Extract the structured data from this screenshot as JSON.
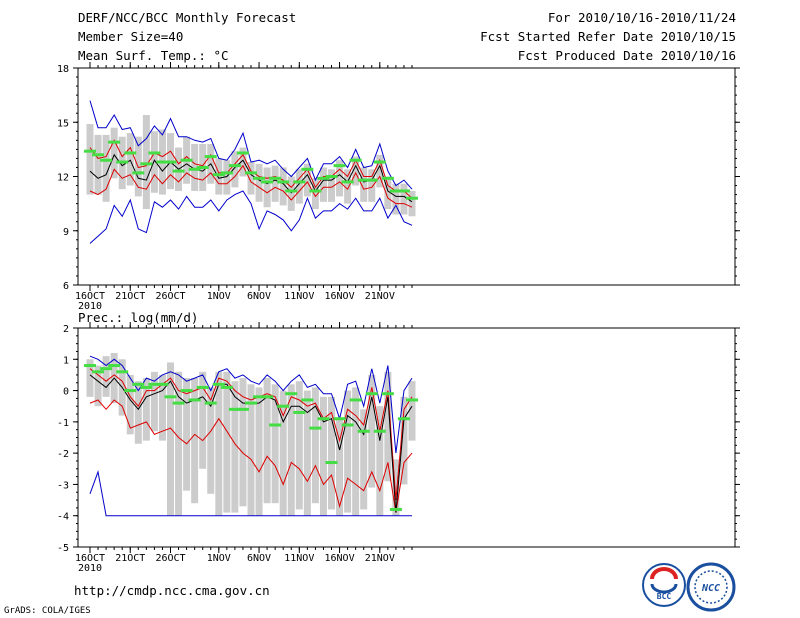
{
  "header": {
    "title": "DERF/NCC/BCC Monthly Forecast",
    "member_size": "Member Size=40",
    "variable": "Mean Surf. Temp.: °C",
    "period": "For 2010/10/16-2010/11/24",
    "start_date": "Fcst Started Refer Date 2010/10/15",
    "produced_date": "Fcst Produced Date 2010/10/16"
  },
  "footer": {
    "url": "http://cmdp.ncc.cma.gov.cn",
    "credit": "GrADS: COLA/IGES",
    "logo_bcc": "BCC",
    "logo_ncc": "NCC"
  },
  "colors": {
    "max": "#0000cc",
    "min": "#0000cc",
    "spread": "#dd0000",
    "mean": "#000000",
    "box": "#cccccc",
    "obs": "#44dd44"
  },
  "chart_data": [
    {
      "type": "line",
      "title": "Mean Surf. Temp.: °C",
      "xlabel": "",
      "ylabel": "°C",
      "ylim": [
        6,
        18
      ],
      "yticks": [
        "6",
        "9",
        "12",
        "15",
        "18"
      ],
      "xtick_labels": [
        {
          "day": 1,
          "label": "16OCT",
          "sub": "2010"
        },
        {
          "day": 6,
          "label": "21OCT"
        },
        {
          "day": 11,
          "label": "26OCT"
        },
        {
          "day": 17,
          "label": "1NOV"
        },
        {
          "day": 22,
          "label": "6NOV"
        },
        {
          "day": 27,
          "label": "11NOV"
        },
        {
          "day": 32,
          "label": "16NOV"
        },
        {
          "day": 37,
          "label": "21NOV"
        }
      ],
      "series": [
        {
          "name": "max",
          "values": [
            16.2,
            14.7,
            14.7,
            15.4,
            14.6,
            14.7,
            13.7,
            14.1,
            14.8,
            14.3,
            15.2,
            14.2,
            14.2,
            14.0,
            13.9,
            14.1,
            13.0,
            12.9,
            13.5,
            14.4,
            12.8,
            12.9,
            12.7,
            12.9,
            12.4,
            12.0,
            12.5,
            13.0,
            11.8,
            12.7,
            12.7,
            13.1,
            12.5,
            13.5,
            12.5,
            12.6,
            13.8,
            12.3,
            11.5,
            11.8,
            11.3
          ]
        },
        {
          "name": "upper",
          "values": [
            13.6,
            13.0,
            13.1,
            14.0,
            13.1,
            13.6,
            12.5,
            12.6,
            13.3,
            13.1,
            13.4,
            12.7,
            13.1,
            12.7,
            12.6,
            13.2,
            12.2,
            12.2,
            12.7,
            13.2,
            12.3,
            12.0,
            11.9,
            12.0,
            11.8,
            11.4,
            11.9,
            12.4,
            11.4,
            12.0,
            12.0,
            12.4,
            12.0,
            12.9,
            12.0,
            12.0,
            12.9,
            11.5,
            11.2,
            11.2,
            10.8
          ]
        },
        {
          "name": "mean",
          "values": [
            12.3,
            11.9,
            12.1,
            13.2,
            12.6,
            12.9,
            11.9,
            11.8,
            12.9,
            12.3,
            12.8,
            12.4,
            12.7,
            12.4,
            12.3,
            12.7,
            11.9,
            12.0,
            12.5,
            12.9,
            12.1,
            11.8,
            11.6,
            11.8,
            11.6,
            11.1,
            11.6,
            12.1,
            11.2,
            11.8,
            11.8,
            12.1,
            11.7,
            12.6,
            11.7,
            11.8,
            12.6,
            11.2,
            10.9,
            10.9,
            10.6
          ]
        },
        {
          "name": "lower",
          "values": [
            11.2,
            11.0,
            11.3,
            12.4,
            11.9,
            12.1,
            11.4,
            11.3,
            12.1,
            11.6,
            12.1,
            11.7,
            12.2,
            11.9,
            11.8,
            12.2,
            11.6,
            11.6,
            12.0,
            12.6,
            11.7,
            11.4,
            11.1,
            11.4,
            11.2,
            10.7,
            11.2,
            11.7,
            10.9,
            11.4,
            11.4,
            11.7,
            11.3,
            12.2,
            11.3,
            11.4,
            12.0,
            10.8,
            10.5,
            10.5,
            10.3
          ]
        },
        {
          "name": "min",
          "values": [
            8.3,
            8.7,
            9.1,
            10.4,
            9.8,
            10.7,
            9.1,
            8.9,
            10.6,
            10.3,
            10.7,
            10.2,
            10.9,
            10.3,
            10.3,
            10.7,
            10.1,
            10.7,
            11.0,
            11.2,
            10.5,
            9.1,
            10.1,
            9.9,
            9.6,
            9.0,
            9.6,
            10.8,
            9.7,
            10.1,
            10.1,
            10.5,
            10.2,
            10.8,
            10.1,
            10.1,
            10.8,
            9.7,
            10.4,
            9.5,
            9.3
          ]
        },
        {
          "name": "box_high",
          "values": [
            14.9,
            14.3,
            14.3,
            14.7,
            14.2,
            14.4,
            14.2,
            15.4,
            14.5,
            14.6,
            14.4,
            13.6,
            14.2,
            13.8,
            13.8,
            13.8,
            13.0,
            12.9,
            13.4,
            13.6,
            12.8,
            12.7,
            12.5,
            12.6,
            12.5,
            12.0,
            12.4,
            12.7,
            11.9,
            12.5,
            12.4,
            12.9,
            12.4,
            13.1,
            12.5,
            12.4,
            13.2,
            12.0,
            11.6,
            11.6,
            11.2
          ]
        },
        {
          "name": "box_low",
          "values": [
            11.0,
            11.0,
            10.6,
            11.9,
            11.3,
            11.5,
            10.9,
            10.2,
            11.1,
            11.0,
            11.3,
            11.2,
            11.6,
            11.2,
            11.2,
            11.6,
            11.0,
            11.0,
            11.4,
            12.0,
            11.0,
            10.6,
            10.3,
            10.6,
            10.4,
            10.1,
            10.5,
            10.9,
            10.2,
            10.6,
            10.6,
            10.9,
            10.5,
            11.5,
            10.6,
            10.6,
            11.4,
            10.2,
            9.9,
            9.9,
            9.8
          ]
        },
        {
          "name": "observed",
          "values": [
            13.4,
            13.2,
            12.9,
            13.9,
            12.8,
            13.3,
            12.2,
            12.7,
            13.3,
            12.8,
            12.8,
            12.3,
            12.9,
            12.4,
            12.5,
            13.1,
            12.1,
            12.2,
            12.6,
            13.3,
            12.2,
            11.9,
            11.7,
            11.9,
            11.7,
            11.2,
            11.7,
            12.4,
            11.2,
            11.9,
            12.0,
            12.6,
            11.7,
            12.9,
            11.8,
            11.8,
            12.8,
            11.9,
            11.2,
            11.2,
            10.8
          ]
        }
      ]
    },
    {
      "type": "line",
      "title": "Prec.: log(mm/d)",
      "xlabel": "",
      "ylabel": "log(mm/d)",
      "ylim": [
        -5,
        2
      ],
      "yticks": [
        "-5",
        "-4",
        "-3",
        "-2",
        "-1",
        "0",
        "1",
        "2"
      ],
      "xtick_labels": [
        {
          "day": 1,
          "label": "16OCT",
          "sub": "2010"
        },
        {
          "day": 6,
          "label": "21OCT"
        },
        {
          "day": 11,
          "label": "26OCT"
        },
        {
          "day": 17,
          "label": "1NOV"
        },
        {
          "day": 22,
          "label": "6NOV"
        },
        {
          "day": 27,
          "label": "11NOV"
        },
        {
          "day": 32,
          "label": "16NOV"
        },
        {
          "day": 37,
          "label": "21NOV"
        }
      ],
      "series": [
        {
          "name": "max",
          "values": [
            1.1,
            1.0,
            0.8,
            1.0,
            0.8,
            0.4,
            0.0,
            0.4,
            0.3,
            0.5,
            0.6,
            0.5,
            0.3,
            0.4,
            0.5,
            0.0,
            0.6,
            0.7,
            0.4,
            0.5,
            0.3,
            0.2,
            0.5,
            0.3,
            0.0,
            0.3,
            0.5,
            0.1,
            0.2,
            -0.1,
            -0.1,
            -0.9,
            0.2,
            0.3,
            -0.5,
            0.7,
            -0.4,
            0.8,
            -2.0,
            0.0,
            0.4
          ]
        },
        {
          "name": "upper",
          "values": [
            0.7,
            0.5,
            0.3,
            0.5,
            0.3,
            -0.2,
            -0.5,
            0.0,
            0.0,
            0.2,
            0.4,
            0.0,
            -0.1,
            0.0,
            0.1,
            -0.3,
            0.4,
            0.3,
            0.0,
            -0.2,
            -0.3,
            -0.2,
            -0.1,
            -0.2,
            -0.8,
            -0.2,
            -0.3,
            -0.5,
            -0.4,
            -0.9,
            -0.7,
            -1.6,
            -0.6,
            -0.8,
            -1.1,
            0.1,
            -1.3,
            0.0,
            -3.5,
            -0.6,
            -0.2
          ]
        },
        {
          "name": "mean",
          "values": [
            0.5,
            0.3,
            0.1,
            0.4,
            0.1,
            -0.3,
            -0.6,
            -0.2,
            -0.1,
            0.0,
            0.3,
            -0.2,
            -0.4,
            -0.3,
            -0.2,
            -0.5,
            0.2,
            0.2,
            -0.2,
            -0.4,
            -0.4,
            -0.4,
            -0.2,
            -0.3,
            -1.0,
            -0.5,
            -0.5,
            -0.7,
            -0.5,
            -1.0,
            -0.9,
            -1.9,
            -0.8,
            -1.0,
            -1.4,
            -0.2,
            -1.6,
            -0.2,
            -3.9,
            -0.9,
            -0.5
          ]
        },
        {
          "name": "lower",
          "values": [
            -0.4,
            -0.3,
            -0.6,
            -0.3,
            -0.5,
            -1.2,
            -1.1,
            -1.0,
            -1.4,
            -1.3,
            -1.2,
            -1.5,
            -1.7,
            -1.4,
            -1.6,
            -1.3,
            -0.9,
            -1.3,
            -1.7,
            -2.0,
            -2.2,
            -2.6,
            -2.1,
            -2.4,
            -3.0,
            -2.3,
            -2.5,
            -2.9,
            -2.4,
            -3.0,
            -2.7,
            -3.7,
            -2.8,
            -3.0,
            -3.2,
            -2.6,
            -3.2,
            -2.3,
            -3.9,
            -2.3,
            -2.0
          ]
        },
        {
          "name": "min",
          "values": [
            -3.3,
            -2.6,
            -4.0,
            -4.0,
            -4.0,
            -4.0,
            -4.0,
            -4.0,
            -4.0,
            -4.0,
            -4.0,
            -4.0,
            -4.0,
            -4.0,
            -4.0,
            -4.0,
            -4.0,
            -4.0,
            -4.0,
            -4.0,
            -4.0,
            -4.0,
            -4.0,
            -4.0,
            -4.0,
            -4.0,
            -4.0,
            -4.0,
            -4.0,
            -4.0,
            -4.0,
            -4.0,
            -4.0,
            -4.0,
            -4.0,
            -4.0,
            -4.0,
            -4.0,
            -4.0,
            -4.0,
            -4.0
          ]
        },
        {
          "name": "box_high",
          "values": [
            1.0,
            0.8,
            1.1,
            1.2,
            1.0,
            0.5,
            0.3,
            0.4,
            0.6,
            0.5,
            0.9,
            0.6,
            0.4,
            0.4,
            0.6,
            0.1,
            0.6,
            0.6,
            0.3,
            0.4,
            0.2,
            0.1,
            0.4,
            0.2,
            0.0,
            0.2,
            0.3,
            0.0,
            0.1,
            -0.2,
            -0.2,
            -0.9,
            0.0,
            0.1,
            -0.6,
            0.5,
            -0.5,
            0.6,
            -2.2,
            -0.2,
            0.3
          ]
        },
        {
          "name": "box_low",
          "values": [
            -0.2,
            -0.5,
            -0.2,
            -0.4,
            -0.8,
            -1.4,
            -1.7,
            -1.6,
            -1.3,
            -1.6,
            -4.0,
            -4.0,
            -3.2,
            -3.6,
            -2.5,
            -3.3,
            -4.0,
            -3.9,
            -3.9,
            -3.7,
            -4.0,
            -4.0,
            -3.6,
            -3.6,
            -4.0,
            -4.0,
            -3.8,
            -4.0,
            -3.6,
            -4.0,
            -3.8,
            -4.0,
            -3.9,
            -4.0,
            -3.8,
            -3.1,
            -4.0,
            -2.9,
            -4.0,
            -3.0,
            -1.6
          ]
        },
        {
          "name": "observed",
          "values": [
            0.8,
            0.6,
            0.7,
            0.8,
            0.6,
            0.0,
            0.2,
            0.1,
            0.2,
            0.2,
            -0.2,
            -0.4,
            0.0,
            -0.3,
            0.1,
            -0.4,
            0.2,
            0.1,
            -0.6,
            -0.6,
            -0.4,
            -0.2,
            -0.2,
            -1.1,
            -0.5,
            -0.1,
            -0.7,
            -0.3,
            -1.2,
            -0.9,
            -2.3,
            -0.9,
            -1.1,
            -0.3,
            -1.3,
            -0.1,
            -1.3,
            -0.1,
            -3.8,
            -0.9,
            -0.3
          ]
        }
      ]
    }
  ]
}
